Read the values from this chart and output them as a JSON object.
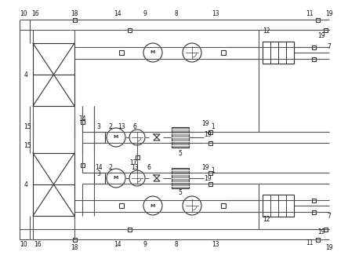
{
  "bg_color": "#ffffff",
  "lc": "#555555",
  "cc": "#333333",
  "lw": 0.8,
  "figsize": [
    4.44,
    3.3
  ],
  "dpi": 100,
  "xlim": [
    0,
    444
  ],
  "ylim": [
    0,
    330
  ]
}
